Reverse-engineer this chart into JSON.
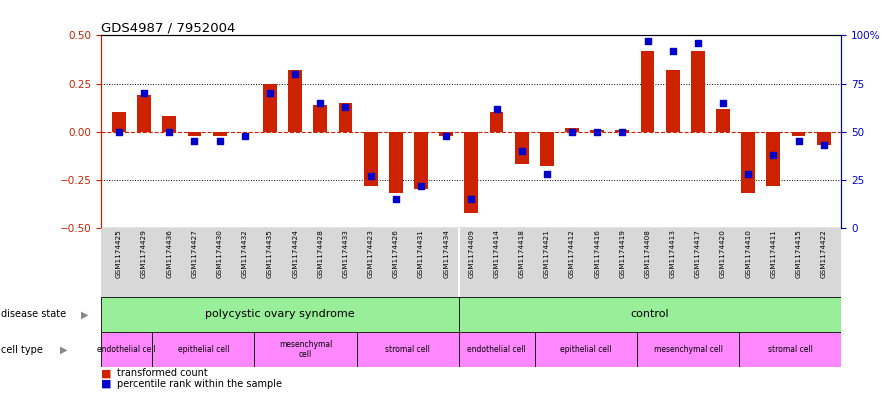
{
  "title": "GDS4987 / 7952004",
  "samples": [
    "GSM1174425",
    "GSM1174429",
    "GSM1174436",
    "GSM1174427",
    "GSM1174430",
    "GSM1174432",
    "GSM1174435",
    "GSM1174424",
    "GSM1174428",
    "GSM1174433",
    "GSM1174423",
    "GSM1174426",
    "GSM1174431",
    "GSM1174434",
    "GSM1174409",
    "GSM1174414",
    "GSM1174418",
    "GSM1174421",
    "GSM1174412",
    "GSM1174416",
    "GSM1174419",
    "GSM1174408",
    "GSM1174413",
    "GSM1174417",
    "GSM1174420",
    "GSM1174410",
    "GSM1174411",
    "GSM1174415",
    "GSM1174422"
  ],
  "transformed_count": [
    0.1,
    0.19,
    0.08,
    -0.02,
    -0.02,
    0.0,
    0.25,
    0.32,
    0.14,
    0.15,
    -0.28,
    -0.32,
    -0.3,
    -0.02,
    -0.42,
    0.1,
    -0.17,
    -0.18,
    0.02,
    0.01,
    0.01,
    0.42,
    0.32,
    0.42,
    0.12,
    -0.32,
    -0.28,
    -0.02,
    -0.07
  ],
  "percentile_rank": [
    50,
    70,
    50,
    45,
    45,
    48,
    70,
    80,
    65,
    63,
    27,
    15,
    22,
    48,
    15,
    62,
    40,
    28,
    50,
    50,
    50,
    97,
    92,
    96,
    65,
    28,
    38,
    45,
    43
  ],
  "ylim_left": [
    -0.5,
    0.5
  ],
  "ylim_right": [
    0,
    100
  ],
  "yticks_left": [
    -0.5,
    -0.25,
    0,
    0.25,
    0.5
  ],
  "yticks_right": [
    0,
    25,
    50,
    75,
    100
  ],
  "bar_color": "#cc2200",
  "dot_color": "#0000cc",
  "n_pcos": 14,
  "n_ctrl": 15,
  "pcos_label": "polycystic ovary syndrome",
  "ctrl_label": "control",
  "disease_color": "#99ee99",
  "cell_color": "#ff88ff",
  "cell_types_pcos": [
    {
      "label": "endothelial cell",
      "count": 2
    },
    {
      "label": "epithelial cell",
      "count": 4
    },
    {
      "label": "mesenchymal\ncell",
      "count": 4
    },
    {
      "label": "stromal cell",
      "count": 4
    }
  ],
  "cell_types_ctrl": [
    {
      "label": "endothelial cell",
      "count": 3
    },
    {
      "label": "epithelial cell",
      "count": 4
    },
    {
      "label": "mesenchymal cell",
      "count": 4
    },
    {
      "label": "stromal cell",
      "count": 4
    }
  ]
}
